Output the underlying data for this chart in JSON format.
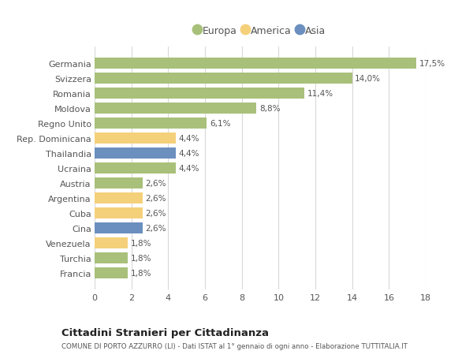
{
  "countries": [
    "Germania",
    "Svizzera",
    "Romania",
    "Moldova",
    "Regno Unito",
    "Rep. Dominicana",
    "Thailandia",
    "Ucraina",
    "Austria",
    "Argentina",
    "Cuba",
    "Cina",
    "Venezuela",
    "Turchia",
    "Francia"
  ],
  "values": [
    17.5,
    14.0,
    11.4,
    8.8,
    6.1,
    4.4,
    4.4,
    4.4,
    2.6,
    2.6,
    2.6,
    2.6,
    1.8,
    1.8,
    1.8
  ],
  "labels": [
    "17,5%",
    "14,0%",
    "11,4%",
    "8,8%",
    "6,1%",
    "4,4%",
    "4,4%",
    "4,4%",
    "2,6%",
    "2,6%",
    "2,6%",
    "2,6%",
    "1,8%",
    "1,8%",
    "1,8%"
  ],
  "continents": [
    "Europa",
    "Europa",
    "Europa",
    "Europa",
    "Europa",
    "America",
    "Asia",
    "Europa",
    "Europa",
    "America",
    "America",
    "Asia",
    "America",
    "Europa",
    "Europa"
  ],
  "colors": {
    "Europa": "#a8c07a",
    "America": "#f5d07a",
    "Asia": "#6b8fbf"
  },
  "legend": [
    "Europa",
    "America",
    "Asia"
  ],
  "legend_colors": [
    "#a8c07a",
    "#f5d07a",
    "#6b8fbf"
  ],
  "title": "Cittadini Stranieri per Cittadinanza",
  "subtitle": "COMUNE DI PORTO AZZURRO (LI) - Dati ISTAT al 1° gennaio di ogni anno - Elaborazione TUTTITALIA.IT",
  "xlim": [
    0,
    18
  ],
  "xticks": [
    0,
    2,
    4,
    6,
    8,
    10,
    12,
    14,
    16,
    18
  ],
  "background_color": "#ffffff",
  "grid_color": "#d8d8d8",
  "bar_height": 0.72
}
